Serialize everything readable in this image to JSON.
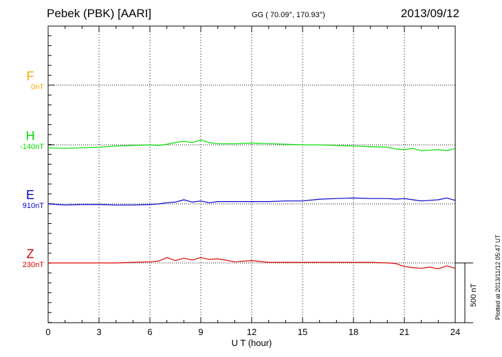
{
  "header": {
    "station": "Pebek (PBK)  [AARI]",
    "coords": "GG ( 70.09°, 170.93°)",
    "date": "2013/09/12"
  },
  "footer": {
    "plotted": "Plotted at 2013/11/12 05:47 UT",
    "scale_label": "500 nT"
  },
  "colors": {
    "F": "#ffa500",
    "H": "#00dd00",
    "E": "#0000cc",
    "Z": "#dd0000"
  },
  "chart_data": {
    "type": "line",
    "xlabel": "U T (hour)",
    "xlim": [
      0,
      24
    ],
    "xticks": [
      "0",
      "3",
      "6",
      "9",
      "12",
      "15",
      "18",
      "21",
      "24"
    ],
    "scale_bar_nT": 500,
    "series": [
      {
        "name": "F",
        "base_label": "0nT",
        "x": [],
        "values": []
      },
      {
        "name": "H",
        "base_label": "-140nT",
        "x": [
          0,
          1,
          2,
          3,
          4,
          5,
          6,
          6.5,
          7,
          7.5,
          8,
          8.5,
          9,
          9.5,
          10,
          11,
          12,
          13,
          14,
          15,
          16,
          17,
          18,
          19,
          20,
          20.5,
          21,
          21.5,
          22,
          22.5,
          23,
          23.5,
          24
        ],
        "values": [
          -25,
          -30,
          -25,
          -20,
          -10,
          -5,
          0,
          -5,
          5,
          20,
          30,
          20,
          40,
          20,
          10,
          10,
          15,
          10,
          5,
          0,
          0,
          -5,
          -10,
          -15,
          -20,
          -35,
          -40,
          -30,
          -50,
          -45,
          -40,
          -50,
          -30
        ]
      },
      {
        "name": "E",
        "base_label": "910nT",
        "x": [
          0,
          1,
          2,
          3,
          4,
          5,
          6,
          6.5,
          7,
          7.5,
          8,
          8.5,
          9,
          9.5,
          10,
          11,
          12,
          13,
          14,
          15,
          16,
          17,
          18,
          19,
          20,
          20.5,
          21,
          21.5,
          22,
          22.5,
          23,
          23.5,
          24
        ],
        "values": [
          0,
          -10,
          -5,
          -5,
          -10,
          -10,
          -5,
          0,
          10,
          15,
          35,
          15,
          25,
          10,
          20,
          20,
          20,
          20,
          25,
          25,
          40,
          45,
          50,
          45,
          45,
          40,
          45,
          35,
          25,
          30,
          35,
          50,
          30
        ]
      },
      {
        "name": "Z",
        "base_label": "230nT",
        "x": [
          0,
          1,
          2,
          3,
          4,
          5,
          6,
          6.5,
          7,
          7.5,
          8,
          8.5,
          9,
          9.5,
          10,
          11,
          12,
          13,
          14,
          15,
          16,
          17,
          18,
          19,
          20,
          20.5,
          21,
          21.5,
          22,
          22.5,
          23,
          23.5,
          24
        ],
        "values": [
          0,
          0,
          0,
          0,
          0,
          5,
          10,
          15,
          45,
          20,
          40,
          25,
          45,
          30,
          35,
          10,
          20,
          5,
          5,
          5,
          5,
          5,
          5,
          5,
          0,
          -5,
          -30,
          -40,
          -45,
          -35,
          -50,
          -25,
          -45
        ]
      }
    ]
  }
}
